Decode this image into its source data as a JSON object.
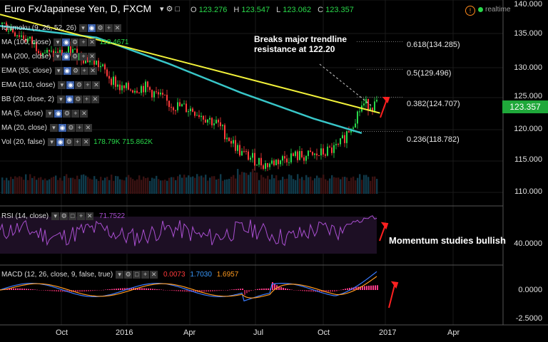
{
  "header": {
    "title": "Euro Fx/Japanese Yen, D, FXCM",
    "open_label": "O",
    "open": "123.276",
    "high_label": "H",
    "high": "123.547",
    "low_label": "L",
    "low": "123.062",
    "close_label": "C",
    "close": "123.357",
    "realtime_label": "realtime"
  },
  "indicators": [
    {
      "label": "Ichimoku (9, 26, 52, 26)",
      "value": ""
    },
    {
      "label": "MA (100, close)",
      "value": "118.4671"
    },
    {
      "label": "MA (200, close)",
      "value": ""
    },
    {
      "label": "EMA (55, close)",
      "value": ""
    },
    {
      "label": "EMA (110, close)",
      "value": ""
    },
    {
      "label": "BB (20, close, 2)",
      "value": ""
    },
    {
      "label": "MA (5, close)",
      "value": ""
    },
    {
      "label": "MA (20, close)",
      "value": ""
    },
    {
      "label": "Vol (20, false)",
      "value": "178.79K  715.862K"
    }
  ],
  "annotations": {
    "breakout": [
      "Breaks major trendline",
      "resistance at 122.20"
    ],
    "momentum": "Momentum studies bullish"
  },
  "fib_levels": [
    {
      "label": "0.618(134.285)",
      "value": 134.285
    },
    {
      "label": "0.5(129.496)",
      "value": 129.496
    },
    {
      "label": "0.382(124.707)",
      "value": 124.707
    },
    {
      "label": "0.236(118.782)",
      "value": 118.782
    }
  ],
  "price_axis": {
    "ticks": [
      "140.000",
      "135.000",
      "130.000",
      "125.000",
      "120.000",
      "115.000",
      "110.000"
    ],
    "current": "123.357"
  },
  "rsi": {
    "label": "RSI (14, close)",
    "value": "71.7522",
    "axis_tick": "40.0000"
  },
  "macd": {
    "label": "MACD (12, 26, close, 9, false, true)",
    "v1": "0.0073",
    "v2": "1.7030",
    "v3": "1.6957",
    "axis_ticks": [
      "0.0000",
      "-2.5000"
    ]
  },
  "x_axis": {
    "ticks": [
      "Oct",
      "2016",
      "Apr",
      "Jul",
      "Oct",
      "2017",
      "Apr"
    ]
  },
  "colors": {
    "up": "#29d84a",
    "down": "#ff3b3b",
    "ma200": "#38c6c8",
    "trendline": "#f2f23a",
    "rsi": "#a94fd0",
    "macd": "#3a7bff",
    "signal": "#ff9a1f",
    "arrow": "#ff2020"
  },
  "chart_data": {
    "type": "candlestick",
    "title": "Euro Fx/Japanese Yen, D, FXCM",
    "x_range": [
      "2015-09",
      "2017-05"
    ],
    "ylim": [
      108.5,
      140.5
    ],
    "close_series": [
      {
        "date": "2015-09-01",
        "close": 137.5
      },
      {
        "date": "2015-10-01",
        "close": 135.0
      },
      {
        "date": "2015-11-01",
        "close": 132.0
      },
      {
        "date": "2015-12-01",
        "close": 132.5
      },
      {
        "date": "2016-01-01",
        "close": 130.5
      },
      {
        "date": "2016-02-01",
        "close": 126.0
      },
      {
        "date": "2016-03-01",
        "close": 126.5
      },
      {
        "date": "2016-04-01",
        "close": 123.5
      },
      {
        "date": "2016-05-01",
        "close": 122.5
      },
      {
        "date": "2016-06-01",
        "close": 120.0
      },
      {
        "date": "2016-07-01",
        "close": 115.0
      },
      {
        "date": "2016-08-01",
        "close": 113.0
      },
      {
        "date": "2016-09-01",
        "close": 114.5
      },
      {
        "date": "2016-10-01",
        "close": 114.5
      },
      {
        "date": "2016-11-01",
        "close": 116.0
      },
      {
        "date": "2016-12-01",
        "close": 123.4
      }
    ],
    "ma200": [
      {
        "date": "2015-09-01",
        "value": 137.0
      },
      {
        "date": "2016-01-01",
        "value": 135.0
      },
      {
        "date": "2016-04-01",
        "value": 130.5
      },
      {
        "date": "2016-07-01",
        "value": 125.5
      },
      {
        "date": "2016-10-01",
        "value": 121.0
      },
      {
        "date": "2016-12-01",
        "value": 118.5
      }
    ],
    "trendline": {
      "from": {
        "date": "2015-09-01",
        "value": 139.0
      },
      "to": {
        "date": "2016-12-15",
        "value": 122.2
      }
    },
    "rsi_range": [
      20,
      80
    ],
    "macd_range": [
      -3,
      3.5
    ]
  }
}
